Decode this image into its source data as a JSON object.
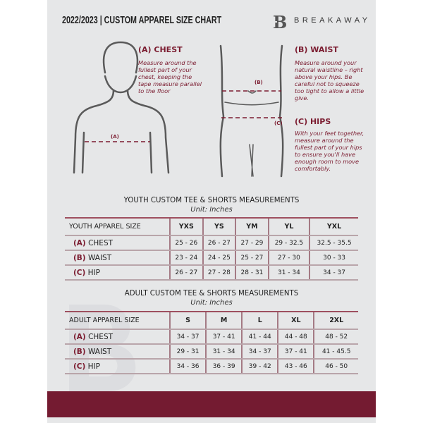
{
  "header": {
    "title": "2022/2023  |  CUSTOM APPAREL SIZE CHART",
    "brand": "BREAKAWAY",
    "logo_letter": "B"
  },
  "guide": {
    "chest": {
      "title": "(A) CHEST",
      "text": "Measure around the fullest part of your chest, keeping the tape measure parallel to the floor",
      "marker": "(A)"
    },
    "waist": {
      "title": "(B) WAIST",
      "text": "Measure around your natural waistline – right above your hips. Be careful not to squeeze too tight to allow a little give.",
      "marker": "(B)"
    },
    "hips": {
      "title": "(C) HIPS",
      "text": "With your feet together, measure around the fullest part of your hips to ensure you'll have enough room to move comfortably.",
      "marker": "(C)"
    }
  },
  "youth": {
    "title": "YOUTH CUSTOM TEE & SHORTS MEASUREMENTS",
    "unit": "Unit: Inches",
    "header": [
      "YOUTH APPAREL SIZE",
      "YXS",
      "YS",
      "YM",
      "YL",
      "YXL"
    ],
    "rows": [
      {
        "letter": "(A)",
        "label": "CHEST",
        "values": [
          "25 - 26",
          "26 - 27",
          "27 - 29",
          "29 - 32.5",
          "32.5 - 35.5"
        ]
      },
      {
        "letter": "(B)",
        "label": "WAIST",
        "values": [
          "23 - 24",
          "24 - 25",
          "25 - 27",
          "27 - 30",
          "30 - 33"
        ]
      },
      {
        "letter": "(C)",
        "label": "HIP",
        "values": [
          "26 - 27",
          "27 - 28",
          "28 - 31",
          "31 - 34",
          "34 - 37"
        ]
      }
    ]
  },
  "adult": {
    "title": "ADULT CUSTOM TEE & SHORTS MEASUREMENTS",
    "unit": "Unit: Inches",
    "header": [
      "ADULT APPAREL SIZE",
      "S",
      "M",
      "L",
      "XL",
      "2XL"
    ],
    "rows": [
      {
        "letter": "(A)",
        "label": "CHEST",
        "values": [
          "34 - 37",
          "37 - 41",
          "41 - 44",
          "44 - 48",
          "48 - 52"
        ]
      },
      {
        "letter": "(B)",
        "label": "WAIST",
        "values": [
          "29 - 31",
          "31 - 34",
          "34 - 37",
          "37 - 41",
          "41 - 45.5"
        ]
      },
      {
        "letter": "(C)",
        "label": "HIP",
        "values": [
          "34 - 36",
          "36 - 39",
          "39 - 42",
          "43 - 46",
          "46 - 50"
        ]
      }
    ]
  },
  "colors": {
    "accent": "#741b31",
    "background": "#e6e7e8"
  }
}
